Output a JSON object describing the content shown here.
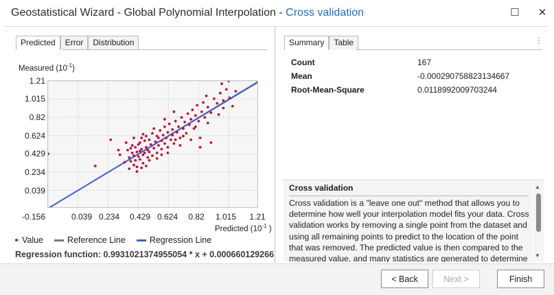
{
  "window": {
    "title_prefix": "Geostatistical Wizard - Global Polynomial Interpolation - ",
    "title_accent": "Cross validation",
    "maximize_glyph": "☐",
    "close_glyph": "✕",
    "accent_color": "#1a6fc4"
  },
  "left_tabs": [
    "Predicted",
    "Error",
    "Distribution"
  ],
  "right_tabs": [
    "Summary",
    "Table"
  ],
  "overflow_glyph": "⋮",
  "chart_data": {
    "type": "scatter",
    "ylabel": "Measured (10",
    "ylabel_exp": "-1",
    "xlabel": "Predicted (10",
    "xlabel_exp": "-1",
    "y_ticks": [
      "1.21",
      "1.015",
      "0.82",
      "0.624",
      "0.429",
      "0.234",
      "0.039"
    ],
    "x_ticks": [
      "-0.156",
      "0.039",
      "0.234",
      "0.429",
      "0.624",
      "0.82",
      "1.015",
      "1.21"
    ],
    "xlim": [
      -0.156,
      1.21
    ],
    "ylim": [
      -0.156,
      1.21
    ],
    "grid": true,
    "series": [
      {
        "name": "Value",
        "color": "#c0143c",
        "points": [
          [
            -0.156,
            0.43
          ],
          [
            0.15,
            0.3
          ],
          [
            0.25,
            0.58
          ],
          [
            0.31,
            0.42
          ],
          [
            0.3,
            0.47
          ],
          [
            0.34,
            0.34
          ],
          [
            0.36,
            0.47
          ],
          [
            0.37,
            0.39
          ],
          [
            0.37,
            0.27
          ],
          [
            0.38,
            0.49
          ],
          [
            0.38,
            0.35
          ],
          [
            0.39,
            0.52
          ],
          [
            0.39,
            0.44
          ],
          [
            0.4,
            0.31
          ],
          [
            0.4,
            0.41
          ],
          [
            0.41,
            0.5
          ],
          [
            0.41,
            0.36
          ],
          [
            0.42,
            0.45
          ],
          [
            0.42,
            0.29
          ],
          [
            0.43,
            0.53
          ],
          [
            0.43,
            0.4
          ],
          [
            0.44,
            0.55
          ],
          [
            0.44,
            0.37
          ],
          [
            0.44,
            0.46
          ],
          [
            0.45,
            0.6
          ],
          [
            0.45,
            0.48
          ],
          [
            0.46,
            0.42
          ],
          [
            0.46,
            0.33
          ],
          [
            0.47,
            0.57
          ],
          [
            0.47,
            0.44
          ],
          [
            0.48,
            0.62
          ],
          [
            0.48,
            0.5
          ],
          [
            0.49,
            0.39
          ],
          [
            0.49,
            0.47
          ],
          [
            0.5,
            0.58
          ],
          [
            0.5,
            0.45
          ],
          [
            0.51,
            0.53
          ],
          [
            0.52,
            0.41
          ],
          [
            0.52,
            0.65
          ],
          [
            0.53,
            0.49
          ],
          [
            0.54,
            0.56
          ],
          [
            0.55,
            0.44
          ],
          [
            0.55,
            0.62
          ],
          [
            0.56,
            0.52
          ],
          [
            0.57,
            0.68
          ],
          [
            0.58,
            0.57
          ],
          [
            0.58,
            0.48
          ],
          [
            0.59,
            0.63
          ],
          [
            0.6,
            0.72
          ],
          [
            0.6,
            0.54
          ],
          [
            0.61,
            0.6
          ],
          [
            0.62,
            0.5
          ],
          [
            0.62,
            0.66
          ],
          [
            0.63,
            0.75
          ],
          [
            0.64,
            0.58
          ],
          [
            0.65,
            0.69
          ],
          [
            0.65,
            0.63
          ],
          [
            0.66,
            0.54
          ],
          [
            0.67,
            0.78
          ],
          [
            0.68,
            0.66
          ],
          [
            0.69,
            0.72
          ],
          [
            0.7,
            0.6
          ],
          [
            0.71,
            0.82
          ],
          [
            0.72,
            0.7
          ],
          [
            0.73,
            0.77
          ],
          [
            0.74,
            0.65
          ],
          [
            0.75,
            0.86
          ],
          [
            0.76,
            0.74
          ],
          [
            0.77,
            0.8
          ],
          [
            0.78,
            0.9
          ],
          [
            0.79,
            0.7
          ],
          [
            0.8,
            0.84
          ],
          [
            0.81,
            0.95
          ],
          [
            0.82,
            0.78
          ],
          [
            0.83,
            0.6
          ],
          [
            0.84,
            0.88
          ],
          [
            0.85,
            0.98
          ],
          [
            0.86,
            0.82
          ],
          [
            0.87,
            1.05
          ],
          [
            0.88,
            0.93
          ],
          [
            0.9,
            0.87
          ],
          [
            0.92,
            1.02
          ],
          [
            0.94,
            0.97
          ],
          [
            0.96,
            1.08
          ],
          [
            0.97,
            1.18
          ],
          [
            0.98,
            0.92
          ],
          [
            1.0,
            1.12
          ],
          [
            1.015,
            1.21
          ],
          [
            1.02,
            1.03
          ],
          [
            1.04,
            0.94
          ],
          [
            1.06,
            1.1
          ],
          [
            0.55,
            0.38
          ],
          [
            0.62,
            0.44
          ],
          [
            0.7,
            0.52
          ],
          [
            0.77,
            0.58
          ],
          [
            0.83,
            0.5
          ],
          [
            0.9,
            0.55
          ],
          [
            0.35,
            0.55
          ],
          [
            0.4,
            0.6
          ],
          [
            0.46,
            0.64
          ],
          [
            0.53,
            0.7
          ],
          [
            0.6,
            0.8
          ],
          [
            0.66,
            0.88
          ],
          [
            0.5,
            0.36
          ],
          [
            0.45,
            0.28
          ],
          [
            0.42,
            0.24
          ],
          [
            0.48,
            0.3
          ],
          [
            0.56,
            0.6
          ],
          [
            0.72,
            0.62
          ],
          [
            0.8,
            0.72
          ],
          [
            0.88,
            0.76
          ],
          [
            0.95,
            0.85
          ],
          [
            0.98,
            1.0
          ],
          [
            0.58,
            0.42
          ],
          [
            0.67,
            0.58
          ]
        ]
      },
      {
        "name": "Reference Line",
        "color": "#777777"
      },
      {
        "name": "Regression Line",
        "color": "#3d5fcf",
        "slope": 0.9931021374955054,
        "intercept": 0.000660129266
      }
    ]
  },
  "legend": {
    "value": "Value",
    "reference": "Reference Line",
    "regression": "Regression Line"
  },
  "regression_function": "Regression function: 0.9931021374955054 * x + 0.000660129266",
  "summary": {
    "rows": [
      {
        "label": "Count",
        "value": "167"
      },
      {
        "label": "Mean",
        "value": "-0.000290758823134667"
      },
      {
        "label": "Root-Mean-Square",
        "value": "0.0118992009703244"
      }
    ]
  },
  "help": {
    "title": "Cross validation",
    "body": "Cross validation is a \"leave one out\" method that allows you to determine how well your interpolation model fits your data. Cross validation works by removing a single point from the dataset and using all remaining points to predict to the location of the point that was removed. The predicted value is then compared to the measured value, and many statistics are generated to determine"
  },
  "buttons": {
    "back": "< Back",
    "next": "Next >",
    "finish": "Finish"
  }
}
